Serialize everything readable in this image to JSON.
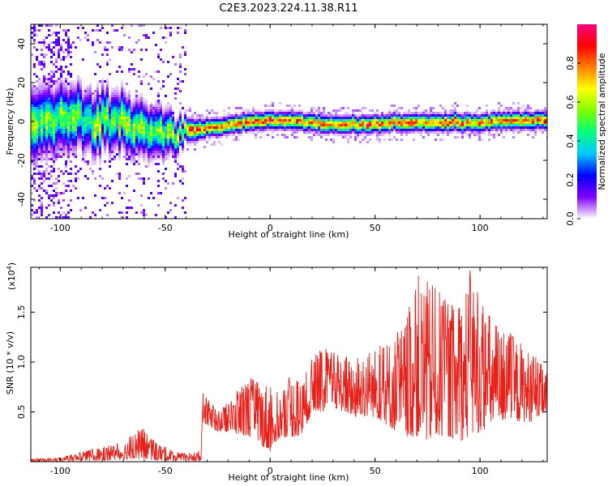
{
  "title": "C2E3.2023.224.11.38.R11",
  "chart_data": [
    {
      "type": "heatmap",
      "xlabel": "Height of straight line (km)",
      "ylabel": "Frequency (Hz)",
      "xlim": [
        -114,
        132
      ],
      "ylim": [
        -50,
        50
      ],
      "xticks": [
        -100,
        -50,
        0,
        50,
        100
      ],
      "yticks": [
        -40,
        -20,
        0,
        20,
        40
      ],
      "xtick_labels": [
        "-100",
        "-50",
        "0",
        "50",
        "100"
      ],
      "ytick_labels": [
        "-40",
        "-20",
        "0",
        "20",
        "40"
      ],
      "ridge": {
        "x": [
          -114,
          -100,
          -80,
          -60,
          -50,
          -40,
          -30,
          -20,
          -10,
          0,
          10,
          20,
          30,
          40,
          50,
          60,
          70,
          80,
          90,
          100,
          110,
          120,
          132
        ],
        "y": [
          0,
          2,
          1,
          -3,
          -5,
          -4,
          -3,
          -1,
          0,
          1,
          1,
          0,
          -1,
          -1,
          -1,
          0,
          0,
          0,
          0,
          0,
          1,
          1,
          1
        ],
        "half_width": [
          12,
          11,
          10,
          9,
          8,
          4,
          3,
          3,
          3,
          3,
          3,
          3,
          3,
          3,
          3,
          3,
          3,
          3,
          3,
          3,
          3,
          3,
          3
        ]
      },
      "colorbar": {
        "label": "Normalized spectral amplitude",
        "range": [
          0,
          1
        ],
        "ticks": [
          0.0,
          0.2,
          0.4,
          0.6,
          0.8
        ],
        "tick_labels": [
          "0.0",
          "0.2",
          "0.4",
          "0.6",
          "0.8"
        ],
        "colors": [
          "#ffffff",
          "#7f00ff",
          "#0000ff",
          "#00c8ff",
          "#00ff80",
          "#80ff00",
          "#ffff00",
          "#ff8000",
          "#ff0000",
          "#ff0080"
        ]
      },
      "grid": false
    },
    {
      "type": "line",
      "xlabel": "Height of straight line (km)",
      "ylabel": "SNR (10 * v/v)",
      "scale_label": "(x10",
      "scale_exp": "4",
      "scale_close": ")",
      "xlim": [
        -114,
        132
      ],
      "ylim": [
        0,
        19500
      ],
      "xticks": [
        -100,
        -50,
        0,
        50,
        100
      ],
      "yticks": [
        5000,
        10000,
        15000
      ],
      "xtick_labels": [
        "-100",
        "-50",
        "0",
        "50",
        "100"
      ],
      "ytick_labels": [
        "0.5",
        "1.0",
        "1.5"
      ],
      "series": [
        {
          "color": "#e8201a",
          "envelope_x": [
            -114,
            -100,
            -90,
            -80,
            -70,
            -65,
            -60,
            -55,
            -50,
            -45,
            -40,
            -33,
            -32,
            -25,
            -20,
            -10,
            0,
            5,
            10,
            15,
            20,
            25,
            30,
            40,
            50,
            60,
            65,
            70,
            75,
            80,
            85,
            90,
            95,
            100,
            110,
            115,
            120,
            125,
            132
          ],
          "envelope_low": [
            0,
            0,
            50,
            100,
            200,
            300,
            200,
            150,
            100,
            50,
            50,
            0,
            4000,
            3000,
            3000,
            2500,
            1000,
            2500,
            2500,
            2500,
            5000,
            5000,
            5500,
            4500,
            4500,
            3000,
            2500,
            2500,
            2000,
            2500,
            2500,
            2000,
            2500,
            3000,
            4000,
            4000,
            4000,
            4000,
            5000
          ],
          "envelope_high": [
            300,
            400,
            1000,
            1500,
            2000,
            3000,
            3500,
            2000,
            1500,
            1000,
            800,
            1200,
            7000,
            5000,
            6000,
            8500,
            8000,
            7000,
            9000,
            8000,
            10500,
            11500,
            11000,
            10500,
            11500,
            13000,
            14500,
            19000,
            18000,
            17500,
            16000,
            16000,
            19500,
            16500,
            13500,
            13000,
            12000,
            11000,
            9000
          ]
        }
      ],
      "grid": false
    }
  ]
}
